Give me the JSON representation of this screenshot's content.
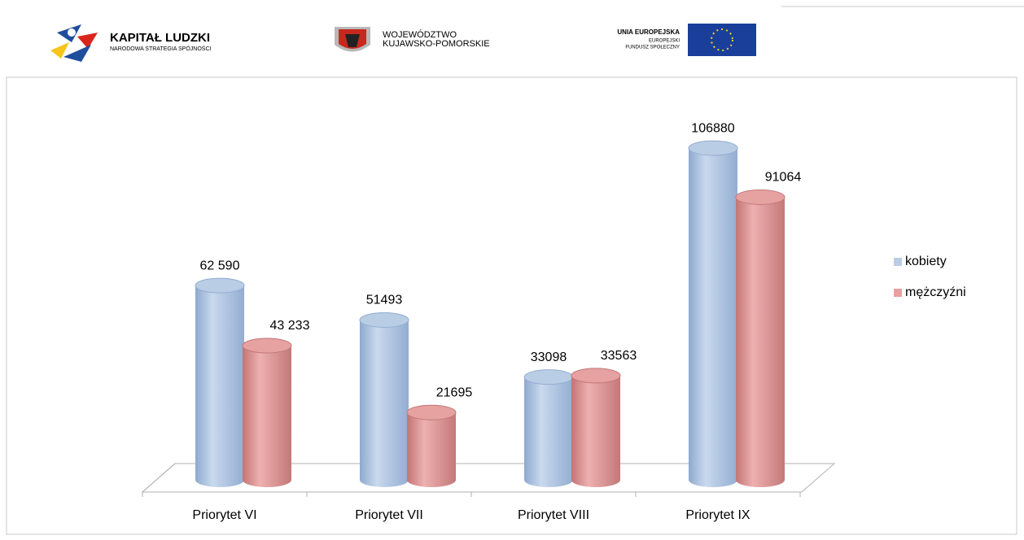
{
  "header": {
    "logo1_title": "KAPITAŁ LUDZKI",
    "logo1_subtitle": "NARODOWA STRATEGIA SPÓJNOŚCI",
    "logo2_line1": "WOJEWÓDZTWO",
    "logo2_line2": "KUJAWSKO-POMORSKIE",
    "logo3_line1": "UNIA EUROPEJSKA",
    "logo3_line2": "EUROPEJSKI",
    "logo3_line3": "FUNDUSZ SPOŁECZNY"
  },
  "chart_data": {
    "type": "bar",
    "categories": [
      "Priorytet VI",
      "Priorytet VII",
      "Priorytet VIII",
      "Priorytet IX"
    ],
    "series": [
      {
        "name": "kobiety",
        "color": "#b9cde5",
        "values": [
          62590,
          51493,
          33098,
          106880
        ],
        "value_labels": [
          "62 590",
          "51493",
          "33098",
          "106880"
        ]
      },
      {
        "name": "mężczyźni",
        "color": "#e6a1a1",
        "values": [
          43233,
          21695,
          33563,
          91064
        ],
        "value_labels": [
          "43 233",
          "21695",
          "33563",
          "91064"
        ]
      }
    ],
    "ylim": [
      0,
      120000
    ],
    "legend": "right"
  }
}
